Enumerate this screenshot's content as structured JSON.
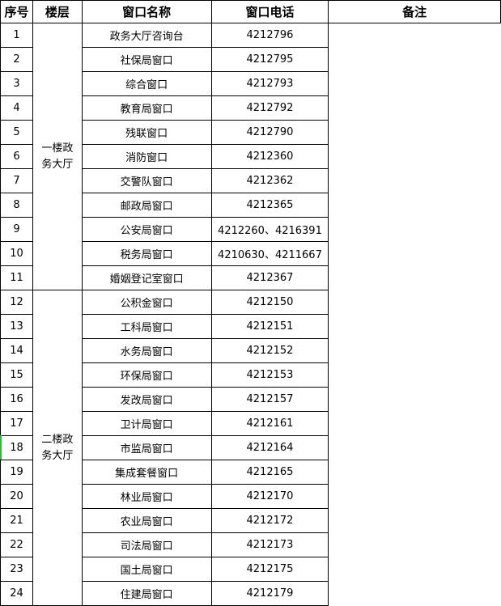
{
  "headers": [
    "序号",
    "楼层",
    "窗口名称",
    "窗口电话",
    "备注"
  ],
  "floors": [
    "一楼政务大厅",
    "二楼政务大厅"
  ],
  "rows": [
    {
      "no": "1",
      "name": "政务大厅咨询台",
      "phone": "4212796"
    },
    {
      "no": "2",
      "name": "社保局窗口",
      "phone": "4212795"
    },
    {
      "no": "3",
      "name": "综合窗口",
      "phone": "4212793"
    },
    {
      "no": "4",
      "name": "教育局窗口",
      "phone": "4212792"
    },
    {
      "no": "5",
      "name": "残联窗口",
      "phone": "4212790"
    },
    {
      "no": "6",
      "name": "消防窗口",
      "phone": "4212360"
    },
    {
      "no": "7",
      "name": "交警队窗口",
      "phone": "4212362"
    },
    {
      "no": "8",
      "name": "邮政局窗口",
      "phone": "4212365"
    },
    {
      "no": "9",
      "name": "公安局窗口",
      "phone": "4212260、4216391"
    },
    {
      "no": "10",
      "name": "税务局窗口",
      "phone": "4210630、4211667"
    },
    {
      "no": "11",
      "name": "婚姻登记室窗口",
      "phone": "4212367"
    },
    {
      "no": "12",
      "name": "公积金窗口",
      "phone": "4212150"
    },
    {
      "no": "13",
      "name": "工科局窗口",
      "phone": "4212151"
    },
    {
      "no": "14",
      "name": "水务局窗口",
      "phone": "4212152"
    },
    {
      "no": "15",
      "name": "环保局窗口",
      "phone": "4212153"
    },
    {
      "no": "16",
      "name": "发改局窗口",
      "phone": "4212157"
    },
    {
      "no": "17",
      "name": "卫计局窗口",
      "phone": "4212161"
    },
    {
      "no": "18",
      "name": "市监局窗口",
      "phone": "4212164"
    },
    {
      "no": "19",
      "name": "集成套餐窗口",
      "phone": "4212165"
    },
    {
      "no": "20",
      "name": "林业局窗口",
      "phone": "4212170"
    },
    {
      "no": "21",
      "name": "农业局窗口",
      "phone": "4212172"
    },
    {
      "no": "22",
      "name": "司法局窗口",
      "phone": "4212173"
    },
    {
      "no": "23",
      "name": "国土局窗口",
      "phone": "4212175"
    },
    {
      "no": "24",
      "name": "住建局窗口",
      "phone": "4212179"
    }
  ],
  "selection_color": "#3cb043"
}
